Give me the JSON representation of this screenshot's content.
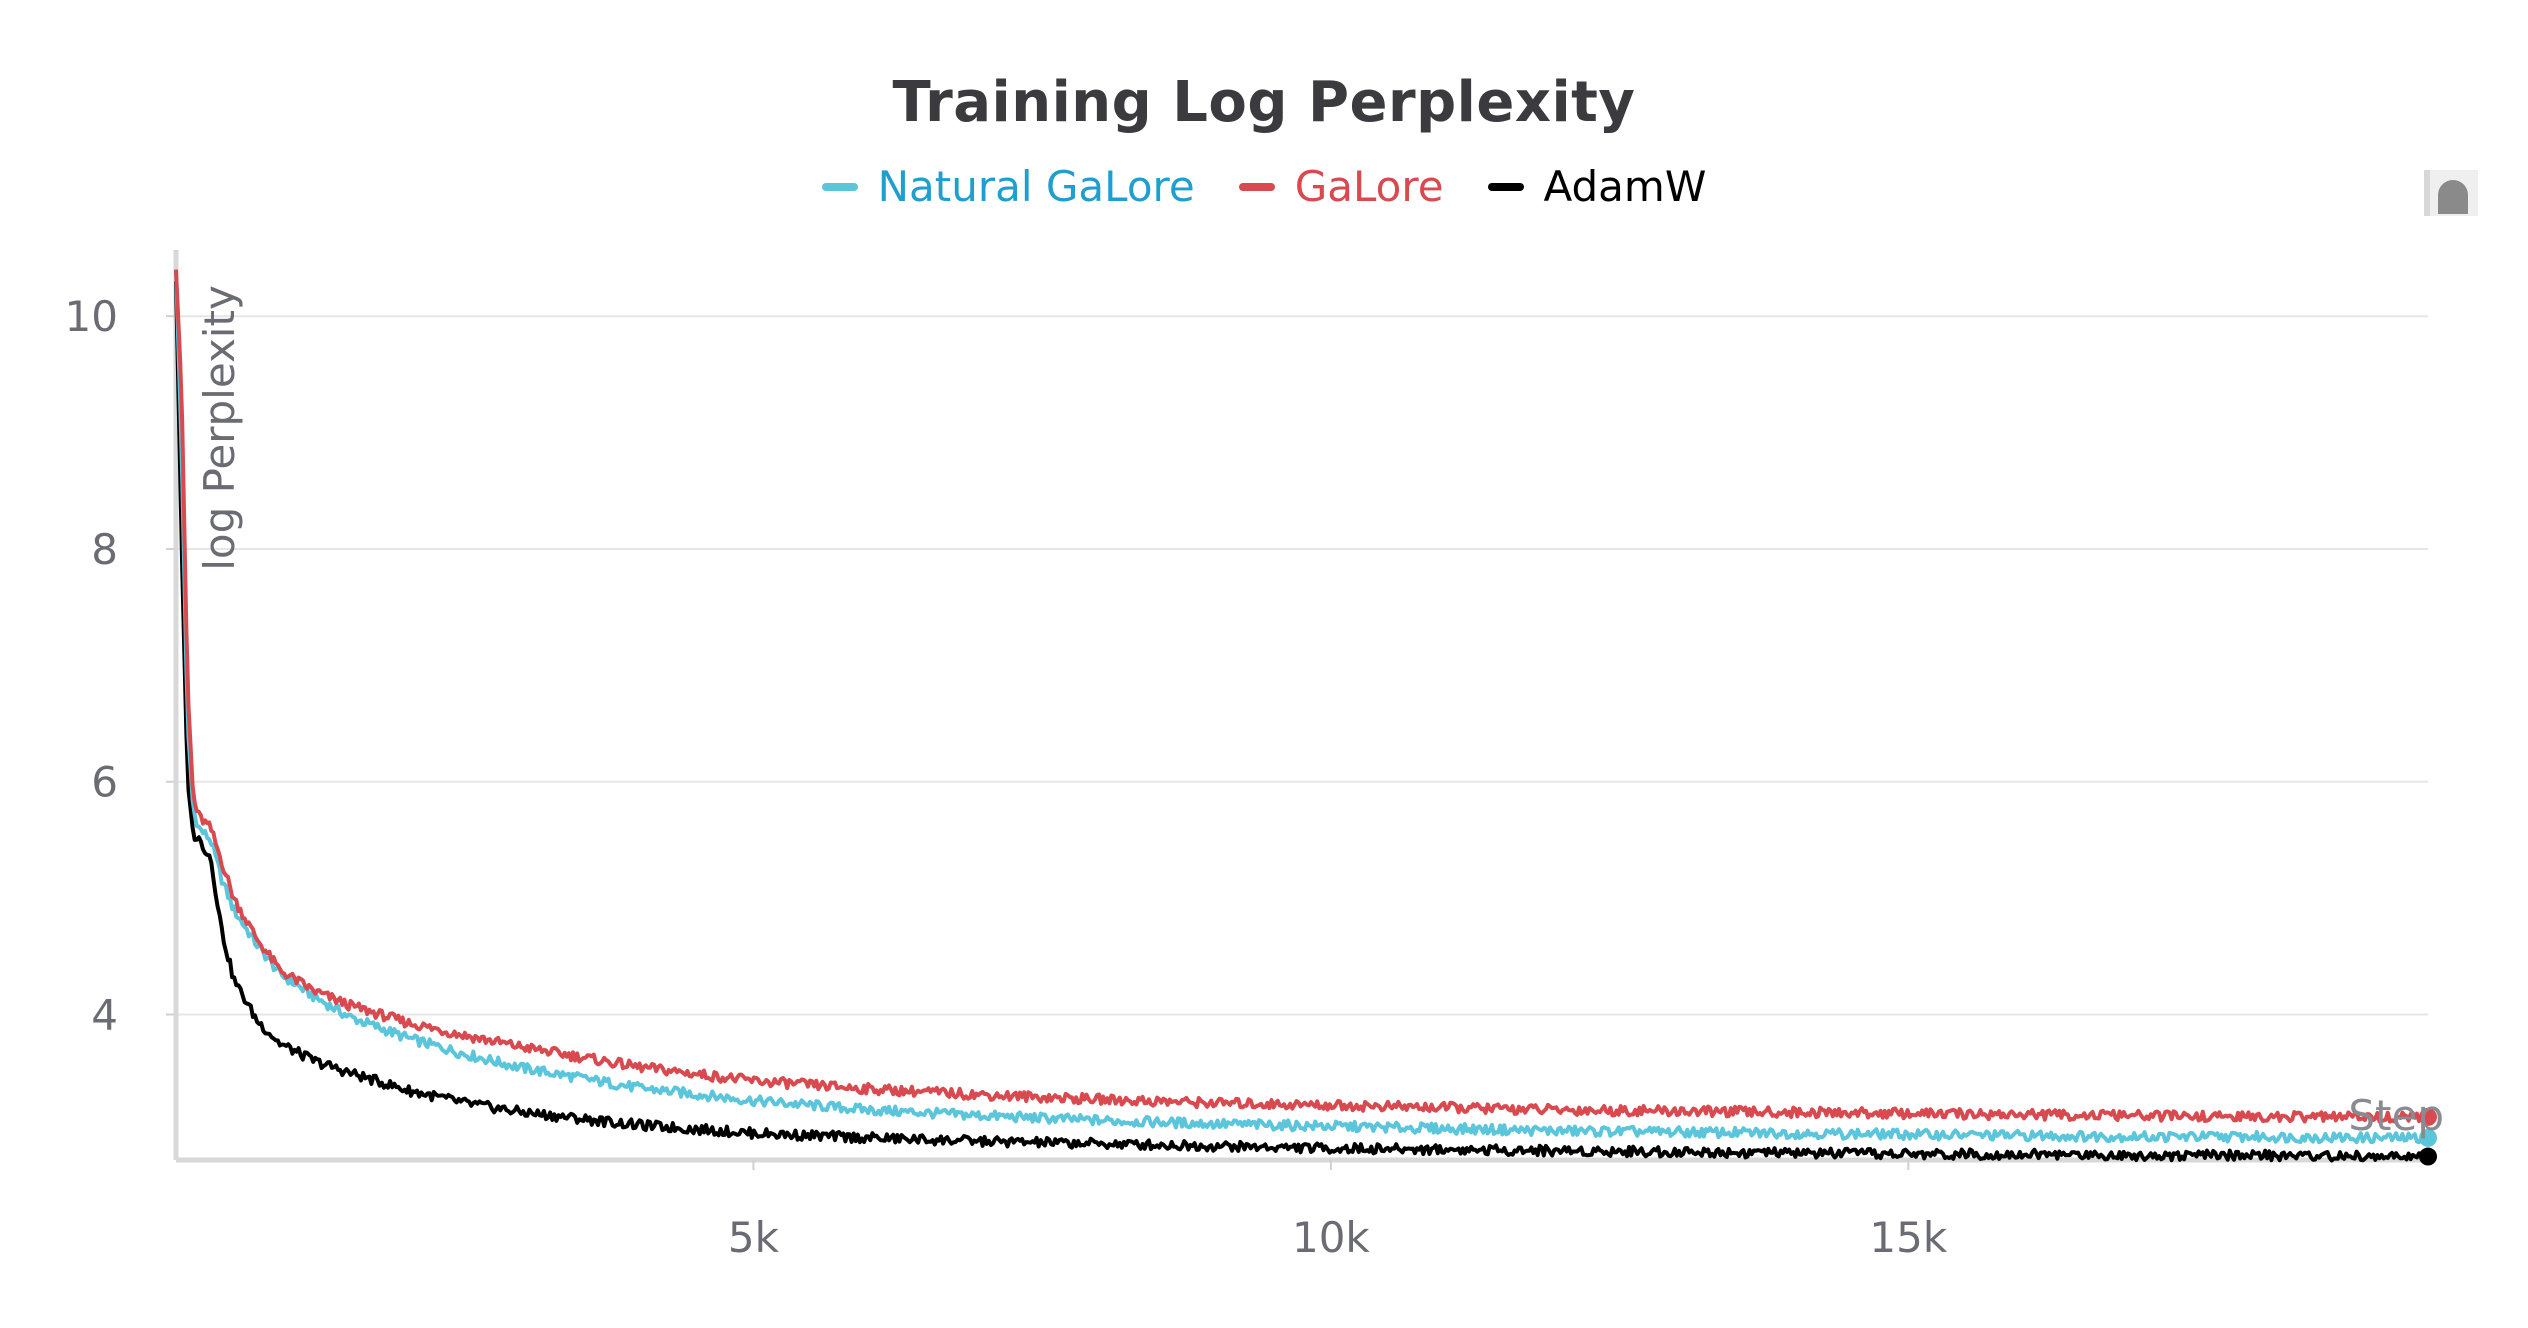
{
  "chart_data": {
    "type": "line",
    "title": "Training Log Perplexity",
    "ylabel": "log Perplexity",
    "xlabel": "Step",
    "xlim": [
      0,
      19500
    ],
    "ylim": [
      2.75,
      10.5
    ],
    "x_ticks": [
      {
        "value": 5000,
        "label": "5k"
      },
      {
        "value": 10000,
        "label": "10k"
      },
      {
        "value": 15000,
        "label": "15k"
      }
    ],
    "y_ticks": [
      {
        "value": 4,
        "label": "4"
      },
      {
        "value": 6,
        "label": "6"
      },
      {
        "value": 8,
        "label": "8"
      },
      {
        "value": 10,
        "label": "10"
      }
    ],
    "grid": true,
    "legend_position": "top-center",
    "series": [
      {
        "name": "Natural GaLore",
        "color": "#5bc5db",
        "label_color": "#1e9fcf",
        "x": [
          0,
          50,
          100,
          150,
          200,
          300,
          400,
          500,
          700,
          900,
          1200,
          1500,
          2000,
          2500,
          3000,
          4000,
          5000,
          6000,
          7000,
          8000,
          9000,
          10000,
          11000,
          12000,
          13000,
          14000,
          15000,
          16000,
          17000,
          18000,
          19000,
          19500
        ],
        "y": [
          10.4,
          8.8,
          6.5,
          5.75,
          5.6,
          5.5,
          5.15,
          4.9,
          4.6,
          4.35,
          4.15,
          3.98,
          3.8,
          3.66,
          3.54,
          3.37,
          3.26,
          3.18,
          3.13,
          3.09,
          3.06,
          3.04,
          3.02,
          3.0,
          2.99,
          2.98,
          2.97,
          2.96,
          2.95,
          2.95,
          2.94,
          2.94
        ]
      },
      {
        "name": "GaLore",
        "color": "#d84a4f",
        "label_color": "#d84a4f",
        "x": [
          0,
          50,
          100,
          150,
          200,
          300,
          400,
          500,
          700,
          900,
          1200,
          1500,
          2000,
          2500,
          3000,
          4000,
          5000,
          6000,
          7000,
          8000,
          9000,
          10000,
          11000,
          12000,
          13000,
          14000,
          15000,
          16000,
          17000,
          18000,
          19000,
          19500
        ],
        "y": [
          10.4,
          9.3,
          6.8,
          5.85,
          5.7,
          5.6,
          5.3,
          5.0,
          4.65,
          4.38,
          4.2,
          4.08,
          3.93,
          3.82,
          3.72,
          3.55,
          3.43,
          3.36,
          3.31,
          3.27,
          3.24,
          3.22,
          3.2,
          3.18,
          3.17,
          3.16,
          3.15,
          3.14,
          3.13,
          3.12,
          3.12,
          3.12
        ]
      },
      {
        "name": "AdamW",
        "color": "#000000",
        "label_color": "#000000",
        "x": [
          0,
          50,
          100,
          150,
          200,
          300,
          400,
          500,
          700,
          900,
          1200,
          1500,
          2000,
          2500,
          3000,
          4000,
          5000,
          6000,
          7000,
          8000,
          9000,
          10000,
          11000,
          12000,
          13000,
          14000,
          15000,
          16000,
          17000,
          18000,
          19000,
          19500
        ],
        "y": [
          10.3,
          8.0,
          6.0,
          5.55,
          5.5,
          5.35,
          4.7,
          4.3,
          3.95,
          3.75,
          3.6,
          3.5,
          3.35,
          3.24,
          3.16,
          3.05,
          2.98,
          2.94,
          2.91,
          2.89,
          2.87,
          2.85,
          2.84,
          2.83,
          2.82,
          2.81,
          2.8,
          2.8,
          2.79,
          2.79,
          2.78,
          2.78
        ]
      }
    ]
  }
}
